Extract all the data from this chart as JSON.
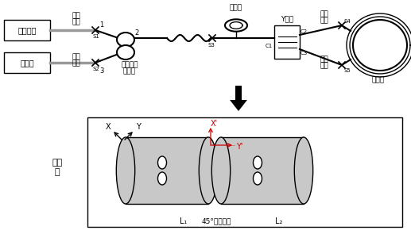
{
  "bg_color": "#ffffff",
  "box_color": "#000000",
  "gray_color": "#999999",
  "depolarizer_fill": "#c8c8c8",
  "labels": {
    "broadband_source": "宿谱光源",
    "detector": "探测器",
    "sm_fiber1": "单模\n尾纤",
    "sm_fiber2": "单模\n尾纤",
    "sm_coupler": "单模光纤\n耦合器",
    "depolarizer_top": "消偶器",
    "y_waveguide": "Y波导",
    "pm_fiber1": "保偶\n尾纤",
    "pm_fiber2": "保偶\n尾纤",
    "fiber_ring": "光纤环",
    "depolarizer_left": "消偶\n器",
    "L1": "L₁",
    "L2": "L₂",
    "splice": "45°对轴燕接",
    "X": "X",
    "Y": "Y",
    "Xp": "X'",
    "Yp": "Y'"
  }
}
